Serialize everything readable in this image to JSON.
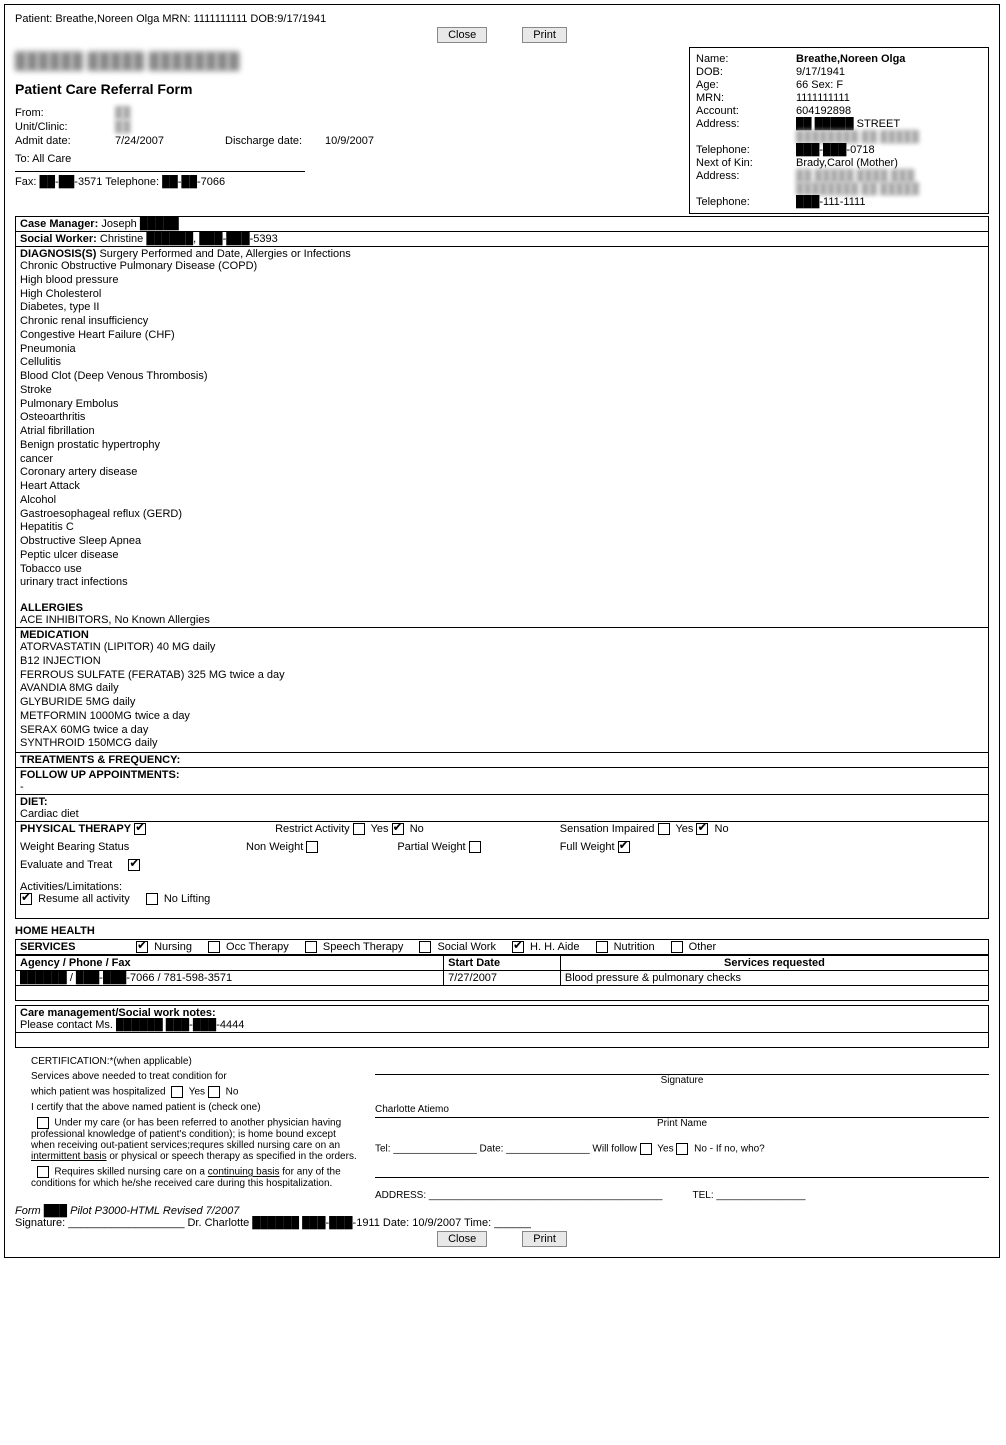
{
  "header": {
    "patient_line": "Patient: Breathe,Noreen Olga MRN: 1111111111 DOB:9/17/1941",
    "close": "Close",
    "print": "Print"
  },
  "patientBox": {
    "name_label": "Name:",
    "name": "Breathe,Noreen Olga",
    "dob_label": "DOB:",
    "dob": "9/17/1941",
    "age_label": "Age:",
    "age": "66 Sex: F",
    "mrn_label": "MRN:",
    "mrn": "1111111111",
    "acct_label": "Account:",
    "acct": "604192898",
    "addr_label": "Address:",
    "addr": "██ █████ STREET",
    "addr2": "████████ ██ █████",
    "tel_label": "Telephone:",
    "tel": "███-███-0718",
    "kin_label": "Next of Kin:",
    "kin": "Brady,Carol (Mother)",
    "kaddr_label": "Address:",
    "kaddr": "██ █████ ████ ███",
    "kaddr2": "████████ ██ █████",
    "ktel_label": "Telephone:",
    "ktel": "███-111-1111"
  },
  "form": {
    "blur": "██████ █████ ████████",
    "title": "Patient Care Referral Form",
    "from_l": "From:",
    "from_v": "██",
    "unit_l": "Unit/Clinic:",
    "unit_v": "██",
    "admit_l": "Admit date:",
    "admit_v": "7/24/2007",
    "disch_l": "Discharge date:",
    "disch_v": "10/9/2007",
    "to": "To: All Care",
    "fax": "Fax: ██-██-3571 Telephone: ██-██-7066"
  },
  "staff": {
    "cm_l": "Case Manager:",
    "cm_v": "Joseph █████",
    "sw_l": "Social Worker:",
    "sw_v": "Christine ██████, ███-███-5393"
  },
  "diag": {
    "head": "DIAGNOSIS(S)",
    "sub": "Surgery Performed and Date, Allergies or Infections",
    "list": [
      "Chronic Obstructive Pulmonary Disease (COPD)",
      "High blood pressure",
      "High Cholesterol",
      "Diabetes, type II",
      "Chronic renal insufficiency",
      "Congestive Heart Failure (CHF)",
      "Pneumonia",
      "Cellulitis",
      "Blood Clot (Deep Venous Thrombosis)",
      "Stroke",
      "Pulmonary Embolus",
      "Osteoarthritis",
      "Atrial fibrillation",
      "Benign prostatic hypertrophy",
      "cancer",
      "Coronary artery disease",
      "Heart Attack",
      "Alcohol",
      "Gastroesophageal reflux (GERD)",
      "Hepatitis C",
      "Obstructive Sleep Apnea",
      "Peptic ulcer disease",
      "Tobacco use",
      "urinary tract infections"
    ]
  },
  "allergies": {
    "head": "ALLERGIES",
    "text": "ACE INHIBITORS, No Known Allergies"
  },
  "meds": {
    "head": "MEDICATION",
    "list": [
      "ATORVASTATIN (LIPITOR) 40 MG daily",
      "B12 INJECTION",
      "FERROUS SULFATE (FERATAB) 325 MG twice a day",
      "AVANDIA 8MG daily",
      "GLYBURIDE 5MG daily",
      "METFORMIN 1000MG twice a day",
      "SERAX 60MG twice a day",
      "SYNTHROID 150MCG daily"
    ]
  },
  "treat": {
    "head": "TREATMENTS & FREQUENCY:"
  },
  "follow": {
    "head": "FOLLOW UP APPOINTMENTS:",
    "body": "-"
  },
  "diet": {
    "head": "DIET:",
    "body": "Cardiac diet"
  },
  "pt": {
    "head": "PHYSICAL THERAPY",
    "restrict": "Restrict Activity",
    "yes": "Yes",
    "no": "No",
    "sens": "Sensation Impaired",
    "wbs": "Weight Bearing Status",
    "nonw": "Non Weight",
    "partw": "Partial Weight",
    "fullw": "Full Weight",
    "eval": "Evaluate and Treat",
    "act_l": "Activities/Limitations:",
    "resume": "Resume all activity",
    "nolift": "No Lifting",
    "checks": {
      "pt": true,
      "restrict_yes": false,
      "restrict_no": true,
      "sens_yes": false,
      "sens_no": true,
      "nonw": false,
      "partw": false,
      "fullw": true,
      "eval": true,
      "resume": true,
      "nolift": false
    }
  },
  "home": {
    "head": "HOME HEALTH",
    "svcs": "SERVICES",
    "opts": {
      "nursing": "Nursing",
      "occ": "Occ Therapy",
      "speech": "Speech Therapy",
      "social": "Social Work",
      "aide": "H. H. Aide",
      "nutr": "Nutrition",
      "other": "Other"
    },
    "checks": {
      "nursing": true,
      "occ": false,
      "speech": false,
      "social": false,
      "aide": true,
      "nutr": false,
      "other": false
    }
  },
  "svcTable": {
    "h1": "Agency / Phone / Fax",
    "h2": "Start Date",
    "h3": "Services requested",
    "r": {
      "agency": "██████ / ███-███-7066 / 781-598-3571",
      "date": "7/27/2007",
      "svc": "Blood pressure & pulmonary checks"
    }
  },
  "notes": {
    "head": "Care management/Social work notes:",
    "body": "Please contact Ms. ██████ ███-███-4444"
  },
  "cert": {
    "title": "CERTIFICATION:*(when applicable)",
    "l1": "Services above needed to treat condition for",
    "l2a": "which patient was hospitalized",
    "yes": "Yes",
    "no": "No",
    "l3": "I certify that the above named patient is (check one)",
    "l4": "Under my care (or has been referred to another physician having professional knowledge of patient's condition); is home bound except when receiving out-patient services;requres skilled nursing care on an ",
    "l4u": "intermittent basis",
    "l4b": " or physical or speech therapy as specified in the orders.",
    "l5a": "Requires skilled nursing care on a ",
    "l5u": "continuing basis",
    "l5b": " for any of the conditions for which he/she received care during this hospitalization.",
    "sig": "Signature",
    "pn": "Print Name",
    "pn_val": "Charlotte Atiemo",
    "tel": "Tel: _______________ Date: _______________ Will follow",
    "addr": "ADDRESS: __________________________________________",
    "tel2": "TEL: ________________"
  },
  "footer": {
    "f1": "Form ███ Pilot P3000-HTML Revised 7/2007",
    "f2": "Signature: ___________________ Dr. Charlotte ██████ ███-███-1911 Date: 10/9/2007 Time: ______"
  }
}
